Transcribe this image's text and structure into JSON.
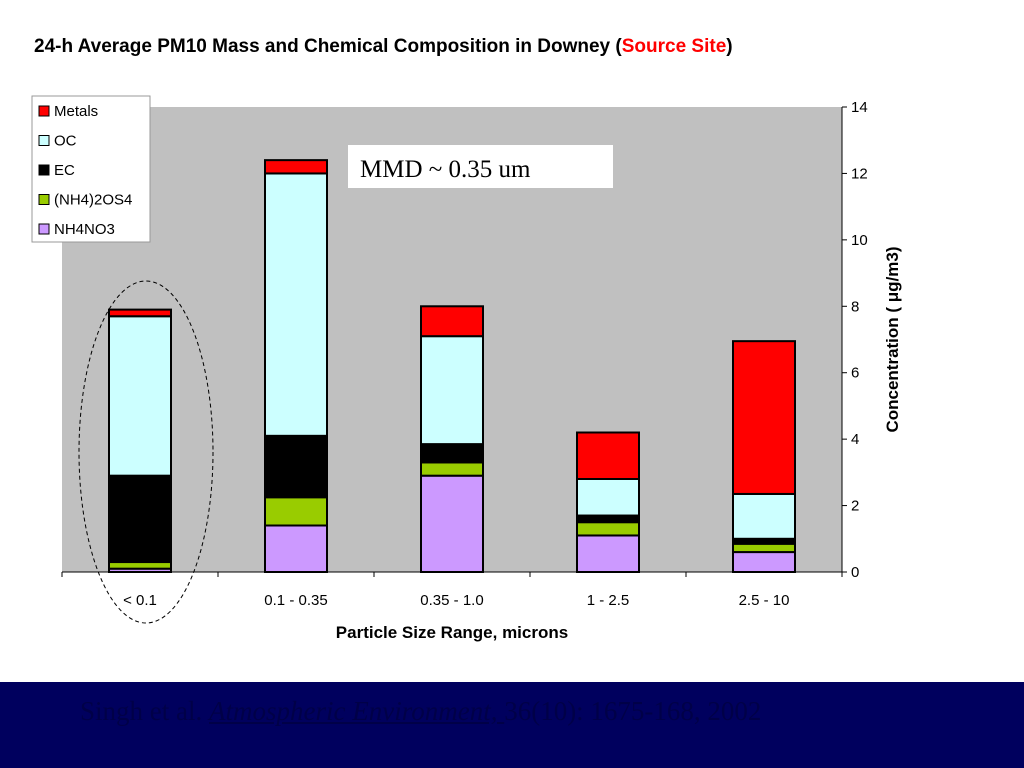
{
  "title": {
    "main": "24-h Average PM10 Mass and Chemical Composition in Downey (",
    "source": "Source Site",
    "close": ")"
  },
  "annotation": "MMD ~ 0.35 um",
  "citation": {
    "authors": "Singh et al. ",
    "journal": "Atmospheric Environment, ",
    "rest": "36(10): 1675-168, 2002"
  },
  "colors": {
    "plot_bg": "#c0c0c0",
    "Metals": "#ff0000",
    "OC": "#ccffff",
    "EC": "#000000",
    "(NH4)2OS4": "#99cc00",
    "NH4NO3": "#cc99ff",
    "footer_bg": "#00005e"
  },
  "chart_data": {
    "type": "bar",
    "stacked": true,
    "categories": [
      "< 0.1",
      "0.1  - 0.35",
      "0.35 - 1.0",
      "1 - 2.5",
      "2.5 - 10"
    ],
    "series": [
      {
        "name": "NH4NO3",
        "values": [
          0.1,
          1.4,
          2.9,
          1.1,
          0.6
        ]
      },
      {
        "name": "(NH4)2OS4",
        "values": [
          0.2,
          0.85,
          0.4,
          0.4,
          0.25
        ]
      },
      {
        "name": "EC",
        "values": [
          2.6,
          1.85,
          0.55,
          0.2,
          0.15
        ]
      },
      {
        "name": "OC",
        "values": [
          4.8,
          7.9,
          3.25,
          1.1,
          1.35
        ]
      },
      {
        "name": "Metals",
        "values": [
          0.2,
          0.4,
          0.9,
          1.4,
          4.6
        ]
      }
    ],
    "legend_order": [
      "Metals",
      "OC",
      "EC",
      "(NH4)2OS4",
      "NH4NO3"
    ],
    "legend_position": "top-left",
    "xlabel": "Particle Size Range, microns",
    "ylabel": "Concentration ( μg/m3)",
    "y_axis_side": "right",
    "ylim": [
      0,
      14
    ],
    "yticks": [
      0,
      2,
      4,
      6,
      8,
      10,
      12,
      14
    ],
    "grid": false
  }
}
